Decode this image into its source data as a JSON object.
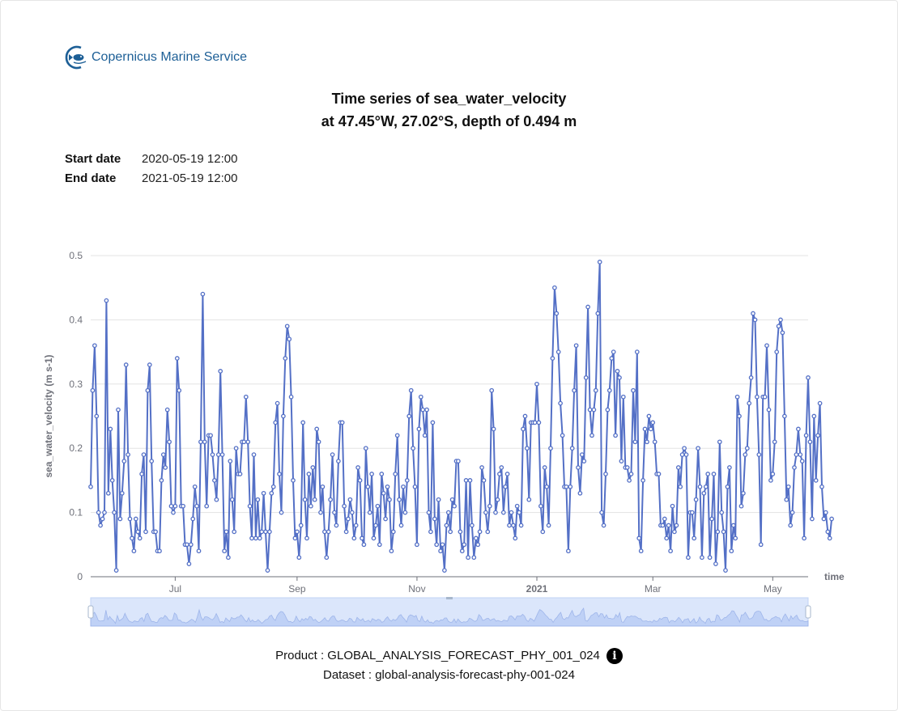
{
  "logo": {
    "text": "Copernicus Marine Service",
    "color": "#1d5f96"
  },
  "title": {
    "line1": "Time series of sea_water_velocity",
    "line2": "at 47.45°W, 27.02°S, depth of 0.494 m"
  },
  "dates": {
    "start_label": "Start date",
    "start_value": "2020-05-19 12:00",
    "end_label": "End date",
    "end_value": "2021-05-19 12:00"
  },
  "footer": {
    "product": "Product : GLOBAL_ANALYSIS_FORECAST_PHY_001_024",
    "dataset": "Dataset : global-analysis-forecast-phy-001-024",
    "info_icon": "info-icon"
  },
  "chart_data": {
    "type": "line",
    "title": "",
    "xlabel": "time",
    "ylabel": "sea_water_velocity (m s-1)",
    "ylim": [
      0,
      0.5
    ],
    "yticks": [
      "0",
      "0.1",
      "0.2",
      "0.3",
      "0.4",
      "0.5"
    ],
    "xlim": [
      "2020-05-19",
      "2021-05-19"
    ],
    "xticks": [
      {
        "date": "2020-07-01",
        "label": "Jul",
        "bold": false
      },
      {
        "date": "2020-09-01",
        "label": "Sep",
        "bold": false
      },
      {
        "date": "2020-11-01",
        "label": "Nov",
        "bold": false
      },
      {
        "date": "2021-01-01",
        "label": "2021",
        "bold": true
      },
      {
        "date": "2021-03-01",
        "label": "Mar",
        "bold": false
      },
      {
        "date": "2021-05-01",
        "label": "May",
        "bold": false
      }
    ],
    "grid": true,
    "line_color": "#5470c6",
    "series": [
      {
        "name": "sea_water_velocity",
        "start": "2020-05-19",
        "step_days": 1,
        "values": [
          0.14,
          0.29,
          0.36,
          0.25,
          0.1,
          0.08,
          0.09,
          0.1,
          0.43,
          0.13,
          0.23,
          0.15,
          0.1,
          0.01,
          0.26,
          0.09,
          0.13,
          0.18,
          0.33,
          0.19,
          0.09,
          0.06,
          0.04,
          0.09,
          0.07,
          0.06,
          0.16,
          0.19,
          0.07,
          0.29,
          0.33,
          0.18,
          0.07,
          0.07,
          0.04,
          0.04,
          0.15,
          0.19,
          0.17,
          0.26,
          0.21,
          0.11,
          0.1,
          0.11,
          0.34,
          0.29,
          0.11,
          0.11,
          0.05,
          0.05,
          0.02,
          0.05,
          0.09,
          0.14,
          0.11,
          0.04,
          0.21,
          0.44,
          0.21,
          0.11,
          0.22,
          0.22,
          0.19,
          0.15,
          0.12,
          0.19,
          0.32,
          0.19,
          0.04,
          0.07,
          0.03,
          0.18,
          0.12,
          0.07,
          0.2,
          0.16,
          0.16,
          0.21,
          0.21,
          0.28,
          0.21,
          0.11,
          0.06,
          0.19,
          0.06,
          0.12,
          0.06,
          0.07,
          0.13,
          0.07,
          0.01,
          0.07,
          0.13,
          0.14,
          0.24,
          0.27,
          0.16,
          0.1,
          0.25,
          0.34,
          0.39,
          0.37,
          0.28,
          0.15,
          0.06,
          0.07,
          0.03,
          0.08,
          0.24,
          0.12,
          0.06,
          0.16,
          0.11,
          0.17,
          0.12,
          0.23,
          0.21,
          0.1,
          0.14,
          0.07,
          0.03,
          0.07,
          0.12,
          0.19,
          0.1,
          0.08,
          0.18,
          0.24,
          0.24,
          0.11,
          0.07,
          0.09,
          0.12,
          0.1,
          0.06,
          0.08,
          0.17,
          0.15,
          0.06,
          0.05,
          0.2,
          0.14,
          0.1,
          0.16,
          0.06,
          0.08,
          0.11,
          0.05,
          0.16,
          0.13,
          0.09,
          0.14,
          0.12,
          0.04,
          0.07,
          0.16,
          0.22,
          0.12,
          0.08,
          0.14,
          0.1,
          0.15,
          0.25,
          0.29,
          0.2,
          0.14,
          0.05,
          0.23,
          0.28,
          0.26,
          0.22,
          0.26,
          0.1,
          0.07,
          0.24,
          0.09,
          0.05,
          0.12,
          0.04,
          0.05,
          0.01,
          0.08,
          0.1,
          0.07,
          0.12,
          0.11,
          0.18,
          0.18,
          0.07,
          0.04,
          0.05,
          0.15,
          0.03,
          0.15,
          0.08,
          0.03,
          0.06,
          0.05,
          0.07,
          0.17,
          0.15,
          0.1,
          0.07,
          0.11,
          0.29,
          0.23,
          0.1,
          0.12,
          0.16,
          0.17,
          0.1,
          0.14,
          0.16,
          0.08,
          0.1,
          0.08,
          0.06,
          0.11,
          0.1,
          0.08,
          0.23,
          0.25,
          0.2,
          0.12,
          0.24,
          0.24,
          0.24,
          0.3,
          0.24,
          0.11,
          0.07,
          0.17,
          0.14,
          0.08,
          0.2,
          0.34,
          0.45,
          0.41,
          0.35,
          0.27,
          0.22,
          0.14,
          0.14,
          0.04,
          0.14,
          0.2,
          0.29,
          0.36,
          0.17,
          0.13,
          0.19,
          0.18,
          0.31,
          0.42,
          0.26,
          0.22,
          0.26,
          0.29,
          0.41,
          0.49,
          0.1,
          0.08,
          0.16,
          0.26,
          0.29,
          0.34,
          0.35,
          0.22,
          0.32,
          0.31,
          0.18,
          0.28,
          0.17,
          0.17,
          0.15,
          0.16,
          0.29,
          0.21,
          0.35,
          0.06,
          0.04,
          0.15,
          0.23,
          0.21,
          0.25,
          0.23,
          0.24,
          0.21,
          0.16,
          0.16,
          0.08,
          0.08,
          0.09,
          0.06,
          0.08,
          0.04,
          0.11,
          0.07,
          0.08,
          0.17,
          0.14,
          0.19,
          0.2,
          0.19,
          0.03,
          0.1,
          0.1,
          0.06,
          0.12,
          0.2,
          0.14,
          0.03,
          0.13,
          0.14,
          0.16,
          0.03,
          0.09,
          0.16,
          0.02,
          0.07,
          0.21,
          0.1,
          0.07,
          0.01,
          0.14,
          0.17,
          0.04,
          0.08,
          0.06,
          0.28,
          0.25,
          0.11,
          0.13,
          0.19,
          0.2,
          0.27,
          0.31,
          0.41,
          0.4,
          0.28,
          0.19,
          0.05,
          0.28,
          0.28,
          0.36,
          0.26,
          0.15,
          0.16,
          0.21,
          0.35,
          0.39,
          0.4,
          0.38,
          0.25,
          0.12,
          0.14,
          0.08,
          0.1,
          0.17,
          0.19,
          0.23,
          0.19,
          0.18,
          0.06,
          0.22,
          0.31,
          0.21,
          0.09,
          0.25,
          0.15,
          0.22,
          0.27,
          0.14,
          0.09,
          0.1,
          0.07,
          0.06,
          0.09
        ]
      }
    ],
    "slider": {
      "fill": "#dbe6fb",
      "border": "#c2d3f5"
    }
  }
}
